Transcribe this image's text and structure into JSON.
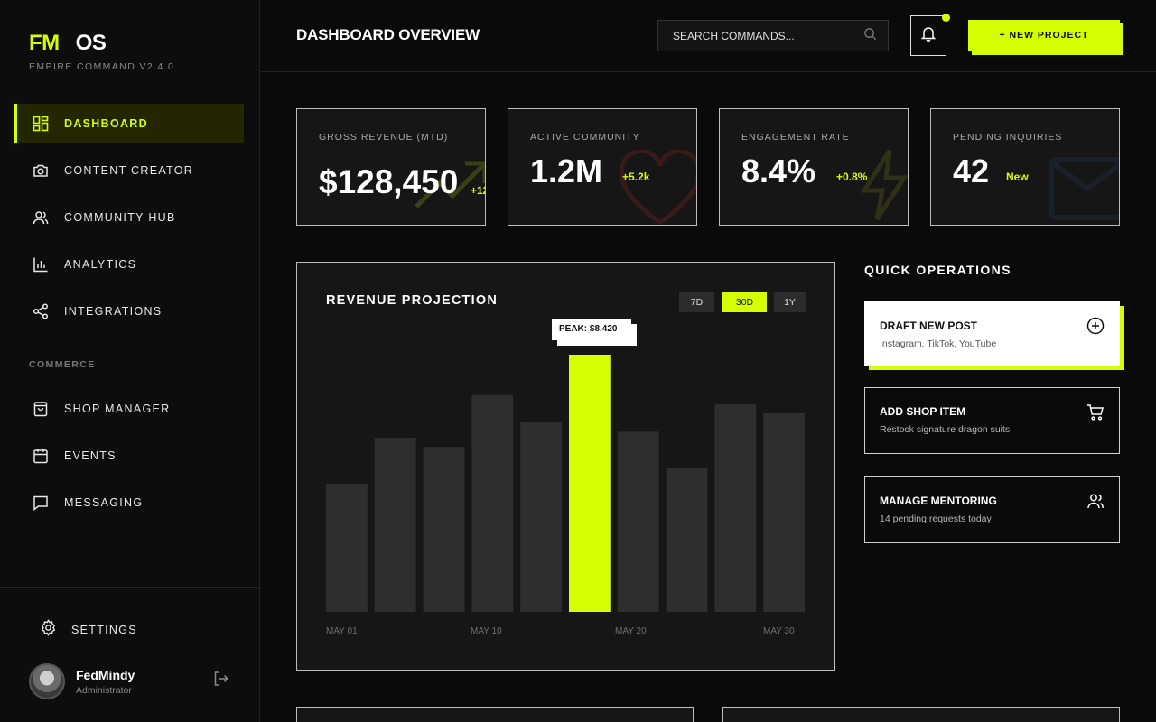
{
  "brand": {
    "part1": "FM",
    "part2": "OS",
    "version": "EMPIRE COMMAND V2.4.0"
  },
  "sidebar": {
    "items": [
      {
        "label": "DASHBOARD"
      },
      {
        "label": "CONTENT CREATOR"
      },
      {
        "label": "COMMUNITY HUB"
      },
      {
        "label": "ANALYTICS"
      },
      {
        "label": "INTEGRATIONS"
      }
    ],
    "section_label": "COMMERCE",
    "commerce_items": [
      {
        "label": "SHOP MANAGER"
      },
      {
        "label": "EVENTS"
      },
      {
        "label": "MESSAGING"
      }
    ],
    "settings_label": "SETTINGS",
    "user": {
      "name": "FedMindy",
      "role": "Administrator"
    }
  },
  "header": {
    "title": "DASHBOARD OVERVIEW",
    "search_placeholder": "SEARCH COMMANDS...",
    "new_project_label": "+ NEW PROJECT"
  },
  "stats": [
    {
      "label": "GROSS REVENUE (MTD)",
      "value": "$128,450",
      "delta": "+12"
    },
    {
      "label": "ACTIVE COMMUNITY",
      "value": "1.2M",
      "delta": "+5.2k"
    },
    {
      "label": "ENGAGEMENT RATE",
      "value": "8.4%",
      "delta": "+0.8%"
    },
    {
      "label": "PENDING INQUIRIES",
      "value": "42",
      "delta": "New"
    }
  ],
  "revenue": {
    "title": "REVENUE PROJECTION",
    "ranges": [
      "7D",
      "30D",
      "1Y"
    ],
    "active_range": "30D",
    "peak_label": "PEAK: $8,420",
    "chart_data": {
      "type": "bar",
      "categories": [
        "MAY 01",
        "",
        "",
        "MAY 10",
        "",
        "",
        "MAY 20",
        "",
        "",
        "MAY 30"
      ],
      "x_tick_labels": [
        "MAY 01",
        "MAY 10",
        "MAY 20",
        "MAY 30"
      ],
      "values": [
        4200,
        5700,
        5400,
        7100,
        6200,
        8420,
        5900,
        4700,
        6800,
        6500
      ],
      "highlight_index": 5,
      "ylim": [
        0,
        8420
      ]
    }
  },
  "quick_ops": {
    "title": "QUICK OPERATIONS",
    "items": [
      {
        "title": "DRAFT NEW POST",
        "subtitle": "Instagram, TikTok, YouTube",
        "icon": "plus-circle-icon"
      },
      {
        "title": "ADD SHOP ITEM",
        "subtitle": "Restock signature dragon suits",
        "icon": "cart-icon"
      },
      {
        "title": "MANAGE MENTORING",
        "subtitle": "14 pending requests today",
        "icon": "users-icon"
      }
    ]
  },
  "colors": {
    "accent": "#d4ff00",
    "background": "#0a0a0a",
    "card": "#161616",
    "bar": "#2e2e2e"
  }
}
